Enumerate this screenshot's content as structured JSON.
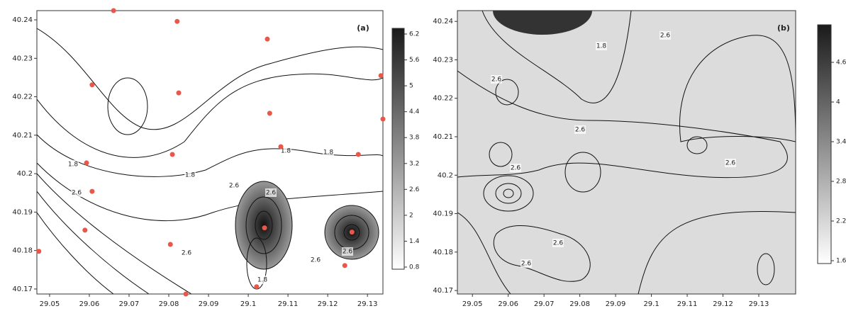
{
  "chart_data": [
    {
      "type": "contour",
      "panel_label": "(a)",
      "xlim": [
        29.0468,
        29.1339
      ],
      "ylim": [
        40.1687,
        40.2424
      ],
      "xticks": [
        29.05,
        29.06,
        29.07,
        29.08,
        29.09,
        29.1,
        29.11,
        29.12,
        29.13
      ],
      "yticks": [
        40.17,
        40.18,
        40.19,
        40.2,
        40.21,
        40.22,
        40.23,
        40.24
      ],
      "clim": [
        0.8,
        6.2
      ],
      "colorbar_ticks": [
        0.8,
        1.4,
        2,
        2.6,
        3.2,
        3.8,
        4.4,
        5,
        5.6,
        6.2
      ],
      "contour_labels": [
        1.8,
        2.6,
        1.8,
        1.8,
        1.8,
        2.6,
        2.6,
        2.6,
        1.8,
        2.6,
        2.6
      ],
      "points": {
        "color": "#e8574a",
        "x": [
          29.0661,
          29.0821,
          29.1048,
          29.1334,
          29.0607,
          29.0825,
          29.1054,
          29.1339,
          29.1082,
          29.1277,
          29.0809,
          29.0593,
          29.0607,
          29.0589,
          29.1041,
          29.1261,
          29.0804,
          29.0473,
          29.1243,
          29.1021,
          29.0843
        ],
        "y": [
          40.2424,
          40.2396,
          40.235,
          40.2255,
          40.2231,
          40.221,
          40.2157,
          40.2142,
          40.207,
          40.205,
          40.205,
          40.2028,
          40.1954,
          40.1853,
          40.1859,
          40.1848,
          40.1816,
          40.1798,
          40.1761,
          40.1706,
          40.1687
        ]
      }
    },
    {
      "type": "contour",
      "panel_label": "(b)",
      "xlim": [
        29.0458,
        29.1403
      ],
      "ylim": [
        40.1691,
        40.2428
      ],
      "xticks": [
        29.05,
        29.06,
        29.07,
        29.08,
        29.09,
        29.1,
        29.11,
        29.12,
        29.13
      ],
      "yticks": [
        40.17,
        40.18,
        40.19,
        40.2,
        40.21,
        40.22,
        40.23,
        40.24
      ],
      "clim": [
        1.6,
        4.6
      ],
      "colorbar_ticks": [
        1.6,
        2.2,
        2.8,
        3.4,
        4,
        4.6
      ],
      "contour_labels": [
        1.8,
        2.6,
        2.6,
        2.6,
        2.6,
        2.6,
        2.6,
        2.6
      ]
    }
  ]
}
